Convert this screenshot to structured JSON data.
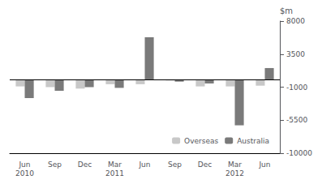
{
  "chart_data": {
    "type": "bar",
    "categories": [
      "Jun\n2010",
      "Sep",
      "Dec",
      "Mar\n2011",
      "Jun",
      "Sep",
      "Dec",
      "Mar\n2012",
      "Jun"
    ],
    "series": [
      {
        "name": "Overseas",
        "color": "#c8c8c8",
        "values": [
          -900,
          -1000,
          -1200,
          -600,
          -600,
          -100,
          -900,
          -900,
          -800
        ]
      },
      {
        "name": "Australia",
        "color": "#7a7a7a",
        "values": [
          -2500,
          -1500,
          -1000,
          -1100,
          5800,
          -250,
          -500,
          -6200,
          1600
        ]
      }
    ],
    "ylabel": "$m",
    "ylim": [
      -10000,
      8000
    ],
    "yticks": [
      -10000,
      -5500,
      -1000,
      3500,
      8000
    ],
    "grid": false,
    "legend": "lower right"
  }
}
